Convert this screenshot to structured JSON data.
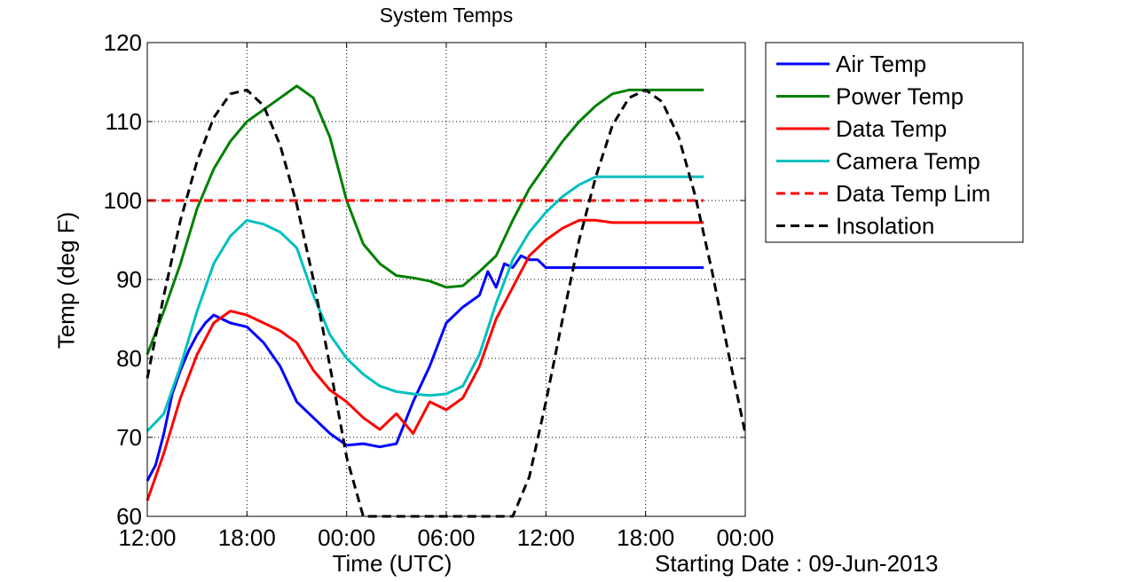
{
  "chart_data": {
    "type": "line",
    "title": "System Temps",
    "xlabel": "Time (UTC)",
    "ylabel": "Temp (deg F)",
    "note": "Starting Date : 09-Jun-2013",
    "x_unit": "hours since 12:00 on 09-Jun-2013",
    "xlim": [
      0,
      36
    ],
    "ylim": [
      60,
      120
    ],
    "x_ticks": [
      0,
      6,
      12,
      18,
      24,
      30,
      36
    ],
    "x_tick_labels": [
      "12:00",
      "18:00",
      "00:00",
      "06:00",
      "12:00",
      "18:00",
      "00:00"
    ],
    "y_ticks": [
      60,
      70,
      80,
      90,
      100,
      110,
      120
    ],
    "y_tick_labels": [
      "60",
      "70",
      "80",
      "90",
      "100",
      "110",
      "120"
    ],
    "grid": true,
    "legend_position": "outside-right-top",
    "series": [
      {
        "name": "Air Temp",
        "color": "#0000ff",
        "style": "solid",
        "x": [
          0,
          0.5,
          1,
          1.5,
          2,
          2.5,
          3,
          3.5,
          4,
          5,
          6,
          7,
          8,
          9,
          10,
          11,
          12,
          13,
          14,
          15,
          16,
          17,
          18,
          19,
          20,
          20.5,
          21,
          21.5,
          22,
          22.5,
          23,
          23.5,
          24,
          25,
          26,
          27,
          28,
          29,
          30,
          31,
          32,
          33,
          33.5
        ],
        "y": [
          64.5,
          66.5,
          70.5,
          75.5,
          78.5,
          81,
          83,
          84.5,
          85.5,
          84.5,
          84,
          82,
          79,
          74.5,
          72.5,
          70.5,
          69,
          69.2,
          68.8,
          69.2,
          74.5,
          79,
          84.5,
          86.5,
          88,
          91,
          89,
          92,
          91.5,
          93,
          92.5,
          92.5,
          91.5,
          91.5,
          91.5,
          91.5,
          91.5,
          91.5,
          91.5,
          91.5,
          91.5,
          91.5,
          91.5
        ]
      },
      {
        "name": "Power Temp",
        "color": "#008000",
        "style": "solid",
        "x": [
          0,
          1,
          2,
          3,
          4,
          5,
          6,
          7,
          8,
          9,
          10,
          11,
          12,
          13,
          14,
          15,
          16,
          17,
          18,
          19,
          20,
          21,
          22,
          23,
          24,
          25,
          26,
          27,
          28,
          29,
          30,
          31,
          32,
          33,
          33.5
        ],
        "y": [
          80.5,
          86,
          92,
          99,
          104,
          107.5,
          110,
          111.5,
          113,
          114.5,
          113,
          108,
          100,
          94.5,
          92,
          90.5,
          90.2,
          89.8,
          89,
          89.2,
          91,
          93,
          97.5,
          101.5,
          104.5,
          107.5,
          110,
          112,
          113.5,
          114,
          114,
          114,
          114,
          114,
          114
        ]
      },
      {
        "name": "Data Temp",
        "color": "#ff0000",
        "style": "solid",
        "x": [
          0,
          1,
          2,
          3,
          4,
          5,
          6,
          7,
          8,
          9,
          10,
          11,
          12,
          13,
          14,
          15,
          16,
          17,
          18,
          19,
          20,
          21,
          22,
          23,
          24,
          25,
          26,
          27,
          28,
          29,
          30,
          31,
          32,
          33,
          33.5
        ],
        "y": [
          62,
          68,
          75,
          80.5,
          84.5,
          86,
          85.5,
          84.5,
          83.5,
          82,
          78.5,
          76,
          74.5,
          72.5,
          71,
          73,
          70.5,
          74.5,
          73.5,
          75,
          79,
          85,
          89,
          93,
          95,
          96.5,
          97.5,
          97.5,
          97.2,
          97.2,
          97.2,
          97.2,
          97.2,
          97.2,
          97.2
        ]
      },
      {
        "name": "Camera Temp",
        "color": "#00bfbf",
        "style": "solid",
        "x": [
          0,
          1,
          2,
          3,
          4,
          5,
          6,
          7,
          8,
          9,
          10,
          11,
          12,
          13,
          14,
          15,
          16,
          17,
          18,
          19,
          20,
          21,
          22,
          23,
          24,
          25,
          26,
          27,
          28,
          29,
          30,
          31,
          32,
          33,
          33.5
        ],
        "y": [
          70.8,
          73,
          79,
          86,
          92,
          95.5,
          97.5,
          97,
          96,
          94,
          88,
          83,
          80,
          78,
          76.5,
          75.8,
          75.5,
          75.3,
          75.5,
          76.5,
          80.5,
          87,
          92.5,
          96,
          98.5,
          100.5,
          102,
          103,
          103,
          103,
          103,
          103,
          103,
          103,
          103
        ]
      },
      {
        "name": "Data Temp Lim",
        "color": "#ff0000",
        "style": "dashed",
        "x": [
          0,
          33.5
        ],
        "y": [
          100,
          100
        ]
      },
      {
        "name": "Insolation",
        "color": "#000000",
        "style": "dashed",
        "x": [
          0,
          1,
          2,
          3,
          4,
          5,
          6,
          7,
          8,
          9,
          10,
          11,
          12,
          13,
          14,
          15,
          16,
          17,
          18,
          19,
          20,
          21,
          22,
          23,
          24,
          25,
          26,
          27,
          28,
          29,
          30,
          31,
          32,
          33,
          34,
          35,
          36
        ],
        "y": [
          77.5,
          88,
          97.5,
          105,
          110.5,
          113.5,
          114,
          112,
          107,
          99.5,
          90,
          79,
          67.5,
          60,
          60,
          60,
          60,
          60,
          60,
          60,
          60,
          60,
          60,
          65,
          74.5,
          85,
          95,
          103,
          109.5,
          113,
          114,
          112.5,
          108,
          100.5,
          91,
          80.5,
          70.5
        ]
      }
    ]
  }
}
